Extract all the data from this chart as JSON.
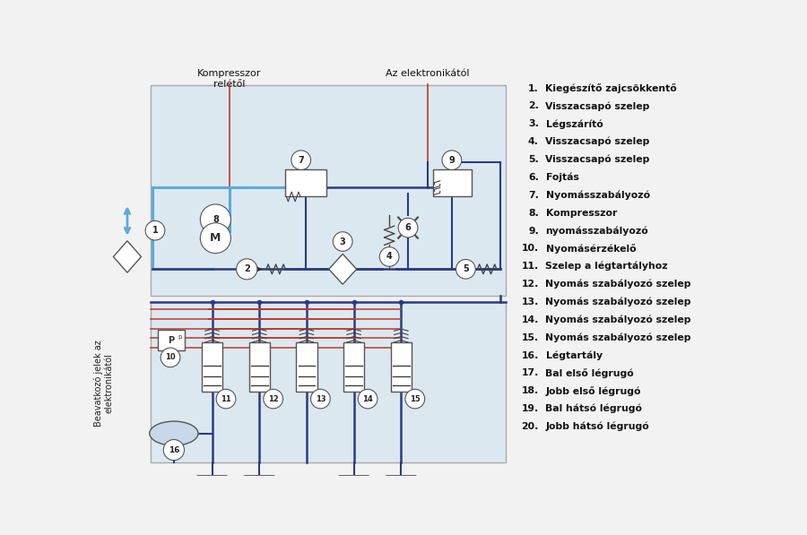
{
  "bg_color": "#f2f2f2",
  "diagram_bg": "#dce8f0",
  "blue_line": "#5aabde",
  "dark_blue": "#2a3a8a",
  "red_line": "#c0392b",
  "top_label1": "Kompresszor\nrelétől",
  "top_label2": "Az elektronikától",
  "side_label": "Beavatkozó jelek az\nelektronikától",
  "items": [
    "Kiegészítő zajcsökkentő",
    "Visszacsapó szelep",
    "Légszárító",
    "Visszacsapó szelep",
    "Visszacsapó szelep",
    "Fojtás",
    "Nyomásszabályozó",
    "Kompresszor",
    "nyomásszabályozó",
    "Nyomásérzékelő",
    "Szelep a légtartályhoz",
    "Nyomás szabályozó szelep",
    "Nyomás szabályozó szelep",
    "Nyomás szabályozó szelep",
    "Nyomás szabályozó szelep",
    "Légtartály",
    "Bal első légrugó",
    "Jobb első légrugó",
    "Bal hátsó légrugó",
    "Jobb hátsó légrugó"
  ]
}
